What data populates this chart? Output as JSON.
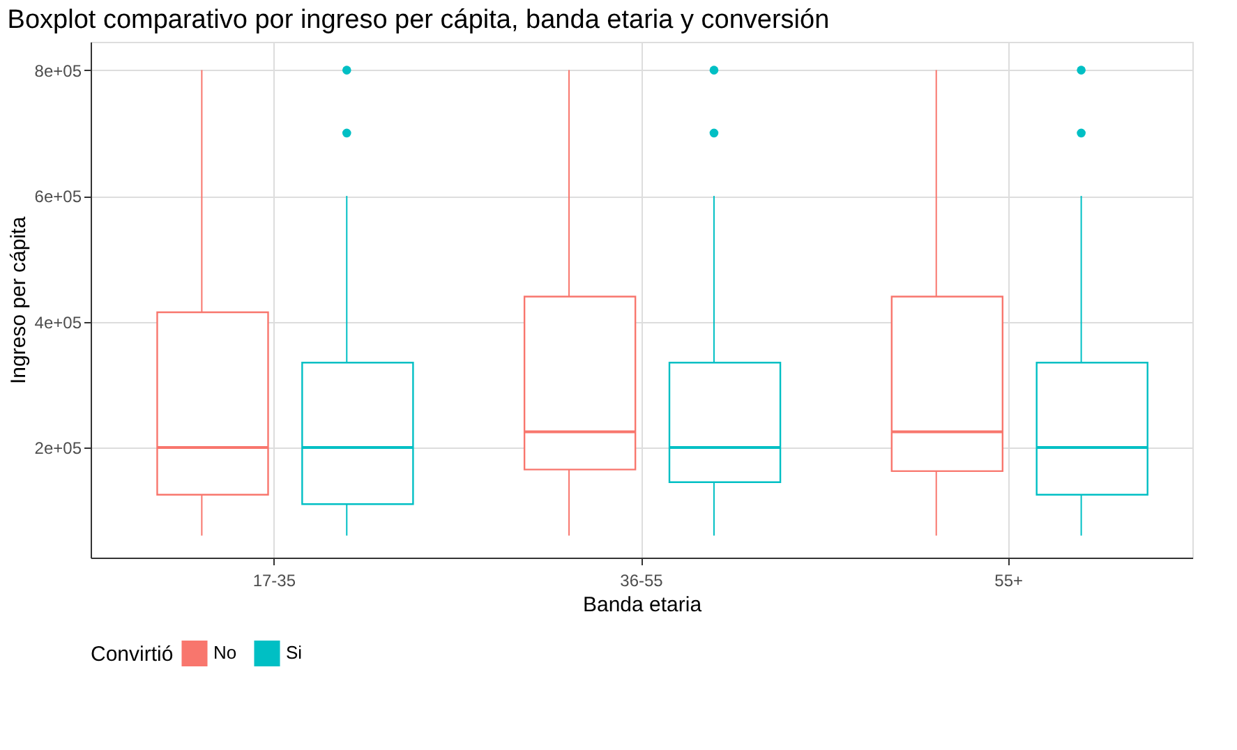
{
  "chart_data": {
    "type": "box",
    "title": "Boxplot comparativo por ingreso per cápita, banda etaria y conversión",
    "xlabel": "Banda etaria",
    "ylabel": "Ingreso per cápita",
    "legend_title": "Convirtió",
    "categories": [
      "17-35",
      "36-55",
      "55+"
    ],
    "series": [
      {
        "name": "No",
        "color": "#f8766d",
        "boxes": [
          {
            "low": 60000,
            "q1": 125000,
            "median": 200000,
            "q3": 415000,
            "high": 800000
          },
          {
            "low": 60000,
            "q1": 165000,
            "median": 225000,
            "q3": 440000,
            "high": 800000
          },
          {
            "low": 60000,
            "q1": 162500,
            "median": 225000,
            "q3": 440000,
            "high": 800000
          }
        ]
      },
      {
        "name": "Si",
        "color": "#00bfc4",
        "boxes": [
          {
            "low": 60000,
            "q1": 110000,
            "median": 200000,
            "q3": 335000,
            "high": 600000,
            "outliers": [
              700000,
              800000
            ]
          },
          {
            "low": 60000,
            "q1": 145000,
            "median": 200000,
            "q3": 335000,
            "high": 600000,
            "outliers": [
              700000,
              800000
            ]
          },
          {
            "low": 60000,
            "q1": 125000,
            "median": 200000,
            "q3": 335000,
            "high": 600000,
            "outliers": [
              700000,
              800000
            ]
          }
        ]
      }
    ],
    "ylim": [
      25000,
      845000
    ],
    "yticks": [
      {
        "value": 200000,
        "label": "2e+05"
      },
      {
        "value": 400000,
        "label": "4e+05"
      },
      {
        "value": 600000,
        "label": "6e+05"
      },
      {
        "value": 800000,
        "label": "8e+05"
      }
    ],
    "grid": true,
    "legend": "bottom"
  }
}
